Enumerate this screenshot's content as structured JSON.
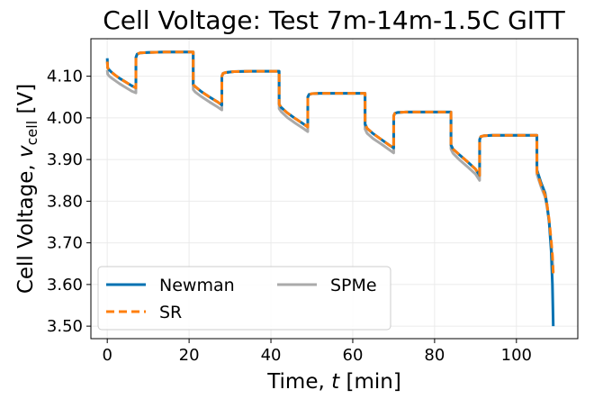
{
  "chart_data": {
    "type": "line",
    "title": "Cell Voltage: Test 7m-14m-1.5C GITT",
    "xlabel": "Time, t [min]",
    "ylabel": "Cell Voltage, v_cell [V]",
    "xlim": [
      -4,
      115
    ],
    "ylim": [
      3.47,
      4.19
    ],
    "x_ticks": [
      0,
      20,
      40,
      60,
      80,
      100
    ],
    "y_ticks": [
      3.5,
      3.6,
      3.7,
      3.8,
      3.9,
      4.0,
      4.1
    ],
    "x_tick_labels": [
      "0",
      "20",
      "40",
      "60",
      "80",
      "100"
    ],
    "y_tick_labels": [
      "3.50",
      "3.60",
      "3.70",
      "3.80",
      "3.90",
      "4.00",
      "4.10"
    ],
    "grid": true,
    "legend_position": "lower-left",
    "series": [
      {
        "name": "Newman",
        "color": "#0072b2",
        "style": "solid",
        "x": [
          0,
          0.1,
          0.5,
          1,
          2,
          3,
          4,
          5,
          6,
          7,
          7.01,
          7.3,
          8,
          10,
          14,
          18,
          21,
          21.01,
          21.5,
          23,
          25,
          27,
          28,
          28.01,
          28.3,
          29,
          31,
          35,
          39,
          42,
          42.01,
          42.5,
          44,
          46,
          48,
          49,
          49.01,
          49.3,
          50,
          52,
          56,
          60,
          63,
          63.01,
          63.5,
          65,
          67,
          69,
          70,
          70.01,
          70.3,
          71,
          73,
          77,
          81,
          84,
          84.01,
          84.5,
          86,
          88,
          90,
          91,
          91.01,
          91.3,
          92,
          94,
          98,
          102,
          105,
          105.01,
          105.5,
          106,
          107,
          107.5,
          108,
          108.5,
          108.8,
          109
        ],
        "y": [
          4.143,
          4.12,
          4.115,
          4.11,
          4.102,
          4.095,
          4.089,
          4.083,
          4.077,
          4.072,
          4.145,
          4.153,
          4.156,
          4.157,
          4.158,
          4.158,
          4.158,
          4.08,
          4.075,
          4.063,
          4.05,
          4.038,
          4.031,
          4.1,
          4.107,
          4.109,
          4.111,
          4.112,
          4.112,
          4.112,
          4.033,
          4.025,
          4.012,
          3.998,
          3.985,
          3.978,
          4.05,
          4.056,
          4.058,
          4.059,
          4.059,
          4.059,
          4.059,
          3.985,
          3.975,
          3.962,
          3.948,
          3.934,
          3.928,
          4.005,
          4.011,
          4.013,
          4.014,
          4.014,
          4.014,
          4.014,
          3.935,
          3.925,
          3.912,
          3.895,
          3.877,
          3.862,
          3.948,
          3.955,
          3.957,
          3.958,
          3.958,
          3.958,
          3.958,
          3.875,
          3.86,
          3.845,
          3.82,
          3.79,
          3.75,
          3.68,
          3.6,
          3.5
        ]
      },
      {
        "name": "SR",
        "color": "#ff7f0e",
        "style": "dashed",
        "x": [
          0,
          0.1,
          0.5,
          1,
          2,
          3,
          4,
          5,
          6,
          7,
          7.01,
          7.3,
          8,
          10,
          14,
          18,
          21,
          21.01,
          21.5,
          23,
          25,
          27,
          28,
          28.01,
          28.3,
          29,
          31,
          35,
          39,
          42,
          42.01,
          42.5,
          44,
          46,
          48,
          49,
          49.01,
          49.3,
          50,
          52,
          56,
          60,
          63,
          63.01,
          63.5,
          65,
          67,
          69,
          70,
          70.01,
          70.3,
          71,
          73,
          77,
          81,
          84,
          84.01,
          84.5,
          86,
          88,
          90,
          91,
          91.01,
          91.3,
          92,
          94,
          98,
          102,
          105,
          105.01,
          105.5,
          106,
          107,
          107.5,
          108,
          108.5,
          108.8,
          109
        ],
        "y": [
          4.135,
          4.12,
          4.115,
          4.11,
          4.102,
          4.095,
          4.089,
          4.083,
          4.077,
          4.072,
          4.145,
          4.153,
          4.156,
          4.157,
          4.158,
          4.158,
          4.158,
          4.08,
          4.075,
          4.063,
          4.05,
          4.038,
          4.031,
          4.1,
          4.107,
          4.109,
          4.111,
          4.112,
          4.112,
          4.112,
          4.033,
          4.025,
          4.012,
          3.998,
          3.985,
          3.978,
          4.05,
          4.056,
          4.058,
          4.059,
          4.059,
          4.059,
          4.059,
          3.985,
          3.975,
          3.962,
          3.948,
          3.934,
          3.928,
          4.005,
          4.011,
          4.013,
          4.014,
          4.014,
          4.014,
          4.014,
          3.935,
          3.925,
          3.912,
          3.895,
          3.877,
          3.862,
          3.948,
          3.955,
          3.957,
          3.958,
          3.958,
          3.958,
          3.958,
          3.87,
          3.855,
          3.84,
          3.815,
          3.79,
          3.755,
          3.705,
          3.67,
          3.625
        ]
      },
      {
        "name": "SPMe",
        "color": "#aaaaaa",
        "style": "solid",
        "x": [
          0,
          0.1,
          0.5,
          1,
          2,
          3,
          4,
          5,
          6,
          7,
          7.01,
          7.3,
          8,
          10,
          14,
          18,
          21,
          21.01,
          21.5,
          23,
          25,
          27,
          28,
          28.01,
          28.3,
          29,
          31,
          35,
          39,
          42,
          42.01,
          42.5,
          44,
          46,
          48,
          49,
          49.01,
          49.3,
          50,
          52,
          56,
          60,
          63,
          63.01,
          63.5,
          65,
          67,
          69,
          70,
          70.01,
          70.3,
          71,
          73,
          77,
          81,
          84,
          84.01,
          84.5,
          86,
          88,
          90,
          91,
          91.01,
          91.3,
          92,
          94,
          98,
          102,
          105,
          105.01,
          105.5,
          106,
          107,
          107.5,
          108,
          108.5,
          108.8,
          109
        ],
        "y": [
          4.115,
          4.105,
          4.1,
          4.096,
          4.089,
          4.082,
          4.076,
          4.07,
          4.064,
          4.06,
          4.145,
          4.153,
          4.156,
          4.157,
          4.158,
          4.158,
          4.158,
          4.068,
          4.062,
          4.051,
          4.038,
          4.026,
          4.019,
          4.1,
          4.107,
          4.109,
          4.111,
          4.112,
          4.112,
          4.112,
          4.022,
          4.015,
          4.001,
          3.987,
          3.974,
          3.967,
          4.05,
          4.056,
          4.058,
          4.059,
          4.059,
          4.059,
          4.059,
          3.973,
          3.963,
          3.95,
          3.937,
          3.923,
          3.916,
          4.005,
          4.011,
          4.013,
          4.014,
          4.014,
          4.014,
          4.014,
          3.925,
          3.915,
          3.9,
          3.883,
          3.865,
          3.85,
          3.948,
          3.955,
          3.957,
          3.958,
          3.958,
          3.958,
          3.958,
          3.865,
          3.85,
          3.835,
          3.81,
          3.785,
          3.75,
          3.7,
          3.66,
          3.63
        ]
      }
    ]
  }
}
